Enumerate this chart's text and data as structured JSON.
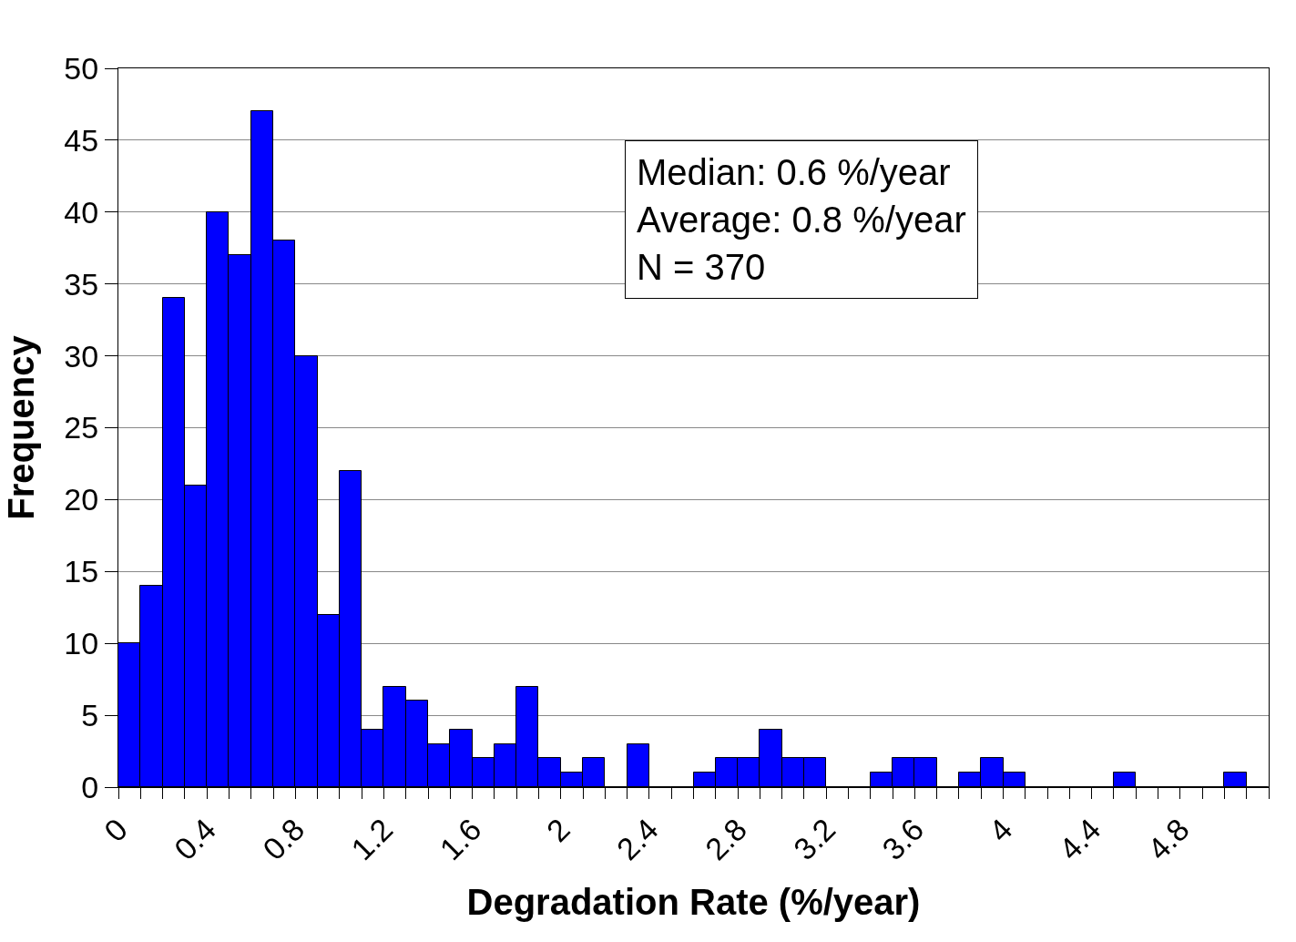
{
  "chart_data": {
    "type": "histogram",
    "xlabel": "Degradation Rate (%/year)",
    "ylabel": "Frequency",
    "bins": [
      0,
      0.1,
      0.2,
      0.3,
      0.4,
      0.5,
      0.6,
      0.7,
      0.8,
      0.9,
      1.0,
      1.1,
      1.2,
      1.3,
      1.4,
      1.5,
      1.6,
      1.7,
      1.8,
      1.9,
      2.0,
      2.1,
      2.2,
      2.3,
      2.4,
      2.5,
      2.6,
      2.7,
      2.8,
      2.9,
      3.0,
      3.1,
      3.2,
      3.3,
      3.4,
      3.5,
      3.6,
      3.7,
      3.8,
      3.9,
      4.0,
      4.1,
      4.2,
      4.3,
      4.4,
      4.5,
      4.6,
      4.7,
      4.8,
      4.9,
      5.0,
      5.1,
      5.2
    ],
    "values": [
      10,
      14,
      34,
      21,
      40,
      37,
      47,
      38,
      30,
      12,
      22,
      4,
      7,
      6,
      3,
      4,
      2,
      3,
      7,
      2,
      1,
      2,
      0,
      3,
      0,
      0,
      1,
      2,
      2,
      4,
      2,
      2,
      0,
      0,
      1,
      2,
      2,
      0,
      1,
      2,
      1,
      0,
      0,
      0,
      0,
      1,
      0,
      0,
      0,
      0,
      1,
      0
    ],
    "color": "#0000ff",
    "xlim": [
      0,
      5.2
    ],
    "xticks": [
      0,
      {
        "value": 0.1,
        "label": null
      },
      {
        "value": 0.2,
        "label": null
      },
      {
        "value": 0.3,
        "label": null
      },
      0.4,
      {
        "value": 0.5,
        "label": null
      },
      {
        "value": 0.6,
        "label": null
      },
      {
        "value": 0.7,
        "label": null
      },
      0.8,
      {
        "value": 0.9,
        "label": null
      },
      {
        "value": 1.0,
        "label": null
      },
      {
        "value": 1.1,
        "label": null
      },
      1.2,
      {
        "value": 1.3,
        "label": null
      },
      {
        "value": 1.4,
        "label": null
      },
      {
        "value": 1.5,
        "label": null
      },
      1.6,
      {
        "value": 1.7,
        "label": null
      },
      {
        "value": 1.8,
        "label": null
      },
      {
        "value": 1.9,
        "label": null
      },
      2,
      {
        "value": 2.1,
        "label": null
      },
      {
        "value": 2.2,
        "label": null
      },
      {
        "value": 2.3,
        "label": null
      },
      2.4,
      {
        "value": 2.5,
        "label": null
      },
      {
        "value": 2.6,
        "label": null
      },
      {
        "value": 2.7,
        "label": null
      },
      2.8,
      {
        "value": 2.9,
        "label": null
      },
      {
        "value": 3.0,
        "label": null
      },
      {
        "value": 3.1,
        "label": null
      },
      3.2,
      {
        "value": 3.3,
        "label": null
      },
      {
        "value": 3.4,
        "label": null
      },
      {
        "value": 3.5,
        "label": null
      },
      3.6,
      {
        "value": 3.7,
        "label": null
      },
      {
        "value": 3.8,
        "label": null
      },
      {
        "value": 3.9,
        "label": null
      },
      4,
      {
        "value": 4.1,
        "label": null
      },
      {
        "value": 4.2,
        "label": null
      },
      {
        "value": 4.3,
        "label": null
      },
      4.4,
      {
        "value": 4.5,
        "label": null
      },
      {
        "value": 4.6,
        "label": null
      },
      {
        "value": 4.7,
        "label": null
      },
      4.8,
      {
        "value": 4.9,
        "label": null
      },
      {
        "value": 5.0,
        "label": null
      },
      {
        "value": 5.1,
        "label": null
      },
      {
        "value": 5.2,
        "label": null
      }
    ],
    "ylim": [
      0,
      50
    ],
    "yticks": [
      0,
      5,
      10,
      15,
      20,
      25,
      30,
      35,
      40,
      45,
      50
    ],
    "grid": "y",
    "annotations": [
      "Median: 0.6 %/year",
      "Average: 0.8 %/year",
      "N = 370"
    ]
  }
}
